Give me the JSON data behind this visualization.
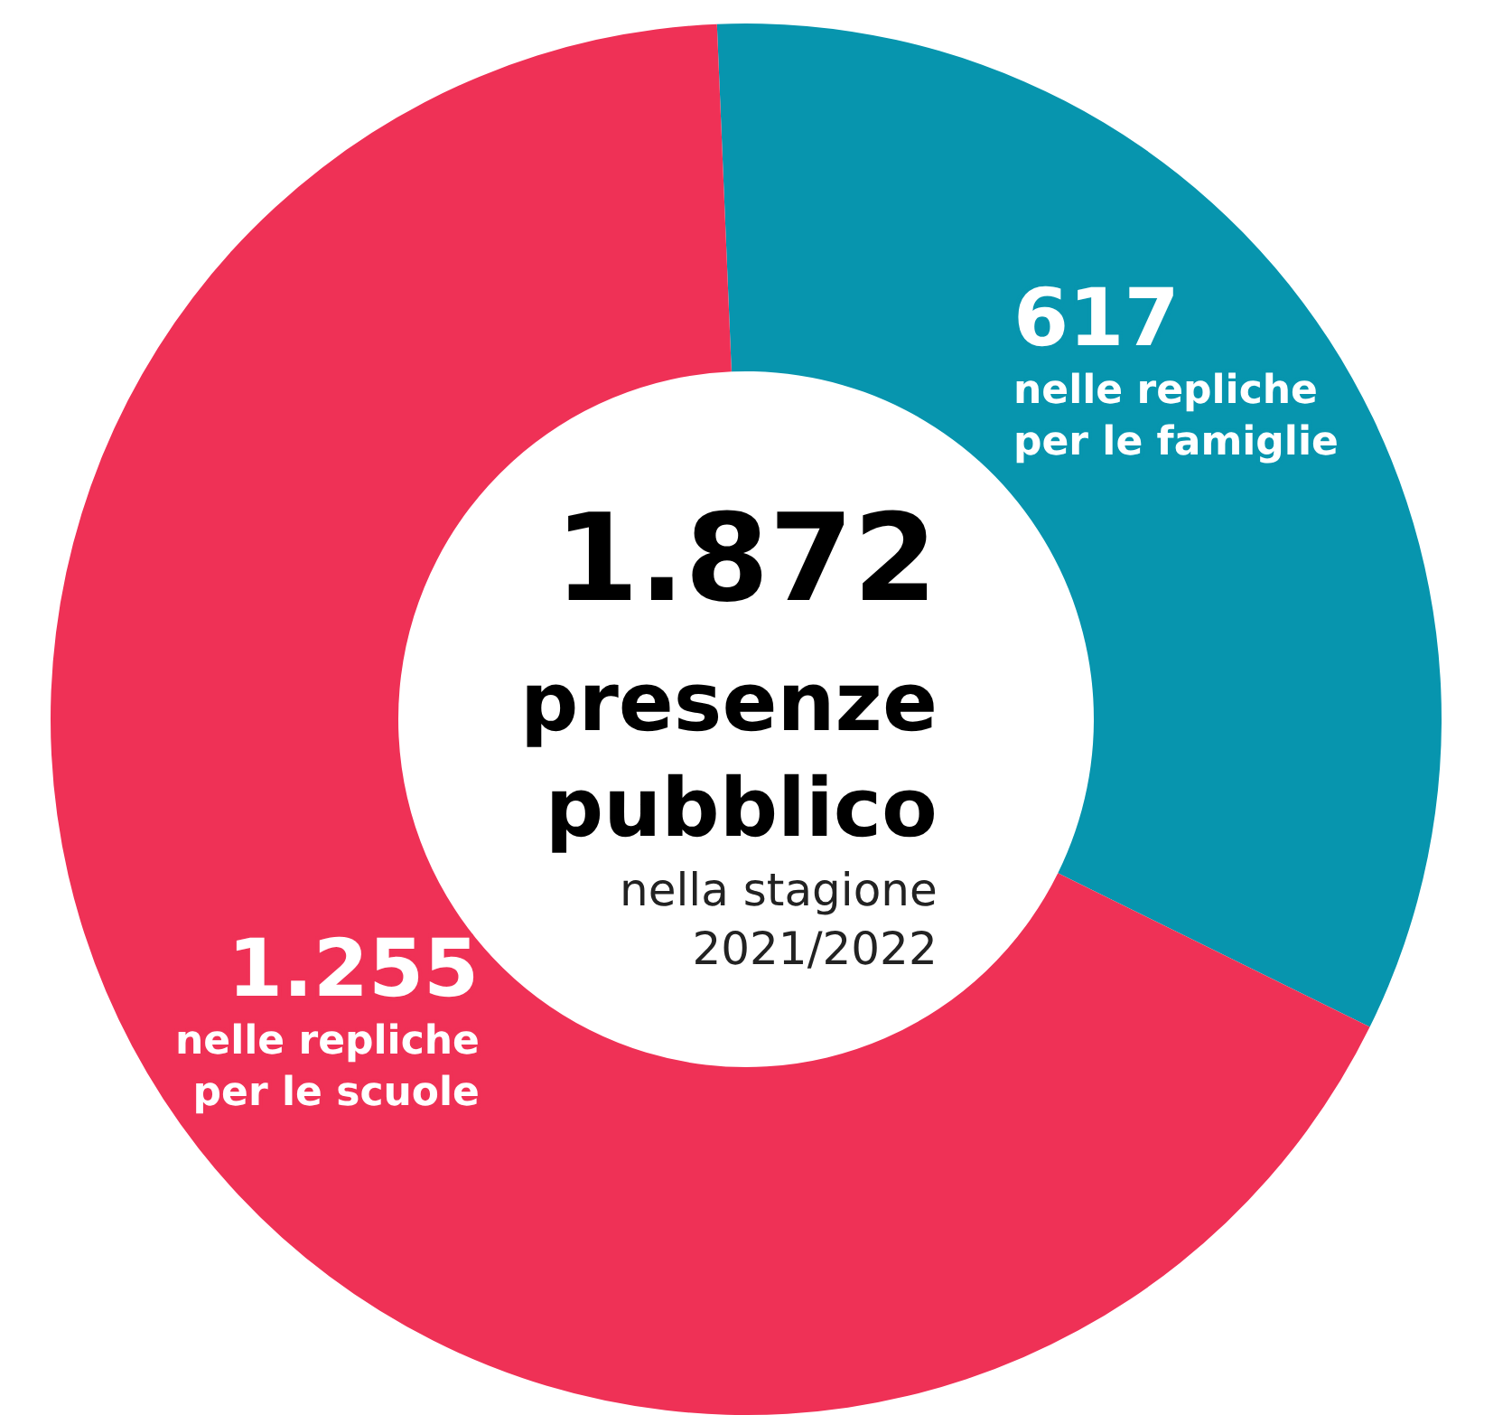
{
  "chart_data": {
    "type": "donut",
    "title": "1.872",
    "subtitle": "presenze pubblico",
    "annotations": [
      "nella stagione 2021/2022"
    ],
    "categories": [
      "nelle repliche per le famiglie",
      "nelle repliche per le scuole"
    ],
    "values": [
      617,
      1255
    ],
    "value_labels": [
      "617",
      "1.255"
    ],
    "colors": [
      "#0795ae",
      "#ef3156"
    ]
  }
}
